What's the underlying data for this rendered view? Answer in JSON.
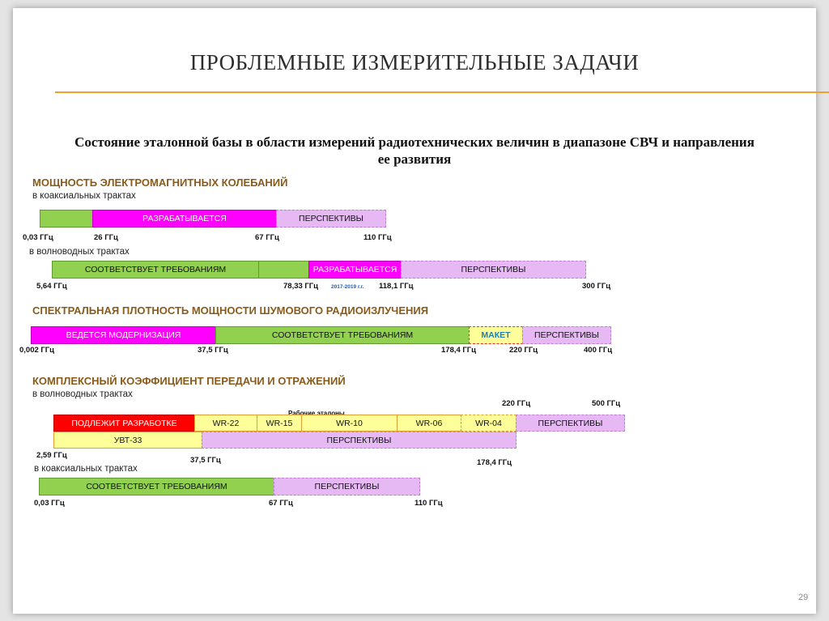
{
  "slide": {
    "title": "ПРОБЛЕМНЫЕ ИЗМЕРИТЕЛЬНЫЕ ЗАДАЧИ",
    "subtitle_line1": "Состояние эталонной базы в области измерений радиотехнических величин в диапазоне СВЧ и направления",
    "subtitle_line2": "ее развития",
    "page_number": "29"
  },
  "colors": {
    "accent_rule": "#f0a030",
    "section_heading": "#8a5a1a",
    "green": "#92d050",
    "magenta": "#ff00ff",
    "lilac": "#e6b9f5",
    "yellow": "#ffff99",
    "red": "#ff0000"
  },
  "sections": {
    "power": {
      "heading": "МОЩНОСТЬ ЭЛЕКТРОМАГНИТНЫХ КОЛЕБАНИЙ",
      "coax": {
        "label": "в коаксиальных трактах",
        "bars": {
          "b1": "",
          "b2": "РАЗРАБАТЫВАЕТСЯ",
          "b3": "ПЕРСПЕКТИВЫ"
        },
        "ticks": {
          "t1": "0,03 ГГц",
          "t2": "26 ГГц",
          "t3": "67 ГГц",
          "t4": "110 ГГц"
        }
      },
      "waveguide": {
        "label": "в волноводных трактах",
        "bars": {
          "b1": "СООТВЕТСТВУЕТ ТРЕБОВАНИЯМ",
          "b2": "",
          "b3": "РАЗРАБАТЫВАЕТСЯ",
          "b4": "ПЕРСПЕКТИВЫ"
        },
        "ticks": {
          "t1": "5,64 ГГц",
          "t2": "78,33 ГГц",
          "t3": "2017-2019 г.г.",
          "t4": "118,1 ГГц",
          "t5": "300 ГГц"
        }
      }
    },
    "noise": {
      "heading": "СПЕКТРАЛЬНАЯ ПЛОТНОСТЬ МОЩНОСТИ ШУМОВОГО РАДИОИЗЛУЧЕНИЯ",
      "bars": {
        "b1": "ВЕДЕТСЯ МОДЕРНИЗАЦИЯ",
        "b2": "СООТВЕТСТВУЕТ ТРЕБОВАНИЯМ",
        "b3": "МАКЕТ",
        "b4": "ПЕРСПЕКТИВЫ"
      },
      "ticks": {
        "t1": "0,002 ГГц",
        "t2": "37,5 ГГц",
        "t3": "178,4 ГГц",
        "t4": "220 ГГц",
        "t5": "400 ГГц"
      }
    },
    "complex": {
      "heading": "КОМПЛЕКСНЫЙ КОЭФФИЦИЕНТ ПЕРЕДАЧИ И ОТРАЖЕНИЙ",
      "waveguide": {
        "label": "в волноводных трактах",
        "top_ticks": {
          "t1": "220 ГГц",
          "t2": "500 ГГц"
        },
        "note": "Рабочие эталоны",
        "row1": {
          "b1": "ПОДЛЕЖИТ РАЗРАБОТКЕ",
          "b2": "WR-22",
          "b3": "WR-15",
          "b4": "WR-10",
          "b5": "WR-06",
          "b6": "WR-04",
          "b7": "ПЕРСПЕКТИВЫ"
        },
        "row2": {
          "b1": "УВТ-33",
          "b2": "ПЕРСПЕКТИВЫ"
        },
        "ticks": {
          "t1": "2,59 ГГц",
          "t2": "37,5 ГГц",
          "t3": "178,4 ГГц"
        }
      },
      "coax": {
        "label": "в коаксиальных трактах",
        "bars": {
          "b1": "СООТВЕТСТВУЕТ ТРЕБОВАНИЯМ",
          "b2": "ПЕРСПЕКТИВЫ"
        },
        "ticks": {
          "t1": "0,03 ГГц",
          "t2": "67 ГГц",
          "t3": "110 ГГц"
        }
      }
    }
  }
}
